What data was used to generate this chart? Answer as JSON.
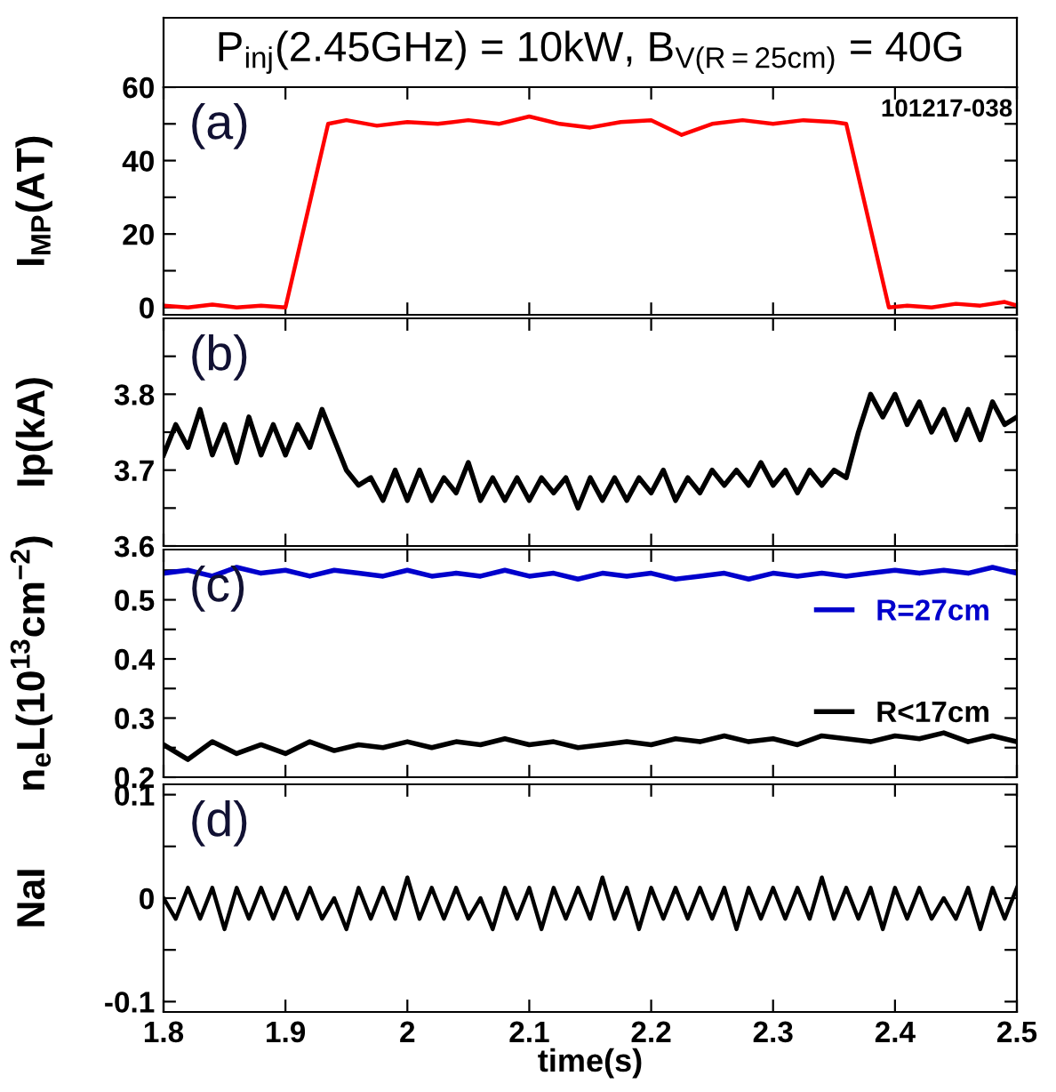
{
  "chart_data": [
    {
      "type": "line",
      "title": "P$_{inj}$(2.45GHz) = 10kW, B$_{V(R=25cm)}$ = 40G",
      "ylabel": "I$_{MP}$(AT)",
      "annotations": [
        "(a)",
        "101217-038"
      ],
      "xlim": [
        1.8,
        2.5
      ],
      "xticks": [
        {
          "value": 1.8,
          "label": null
        },
        {
          "value": 1.9,
          "label": null
        },
        {
          "value": 2.0,
          "label": null
        },
        {
          "value": 2.1,
          "label": null
        },
        {
          "value": 2.2,
          "label": null
        },
        {
          "value": 2.3,
          "label": null
        },
        {
          "value": 2.4,
          "label": null
        },
        {
          "value": 2.5,
          "label": null
        }
      ],
      "ylim": [
        -2,
        60
      ],
      "yticks": [
        0,
        {
          "value": 10,
          "label": null
        },
        20,
        {
          "value": 30,
          "label": null
        },
        40,
        {
          "value": 50,
          "label": null
        },
        60
      ],
      "tick_labels": "y",
      "grid": false,
      "legend": false,
      "marker": "none",
      "line_style": "solid",
      "series": [
        {
          "color": "#ff0000",
          "x": [
            1.8,
            1.82,
            1.84,
            1.86,
            1.88,
            1.9,
            1.935,
            1.95,
            1.975,
            2.0,
            2.025,
            2.05,
            2.075,
            2.1,
            2.125,
            2.15,
            2.175,
            2.2,
            2.225,
            2.25,
            2.275,
            2.3,
            2.325,
            2.35,
            2.36,
            2.395,
            2.41,
            2.43,
            2.45,
            2.47,
            2.49,
            2.5
          ],
          "values": [
            0.5,
            0,
            0.8,
            0,
            0.5,
            0,
            50,
            51,
            49.5,
            50.5,
            50,
            51,
            50,
            52,
            50,
            49,
            50.5,
            51,
            47,
            50,
            51,
            50,
            51,
            50.5,
            50,
            0,
            0.5,
            0,
            1,
            0.5,
            1.5,
            0.5
          ]
        }
      ]
    },
    {
      "type": "line",
      "ylabel": "Ip(kA)",
      "annotations": [
        "(b)"
      ],
      "xlim": [
        1.8,
        2.5
      ],
      "xticks": [
        {
          "value": 1.8,
          "label": null
        },
        {
          "value": 1.9,
          "label": null
        },
        {
          "value": 2.0,
          "label": null
        },
        {
          "value": 2.1,
          "label": null
        },
        {
          "value": 2.2,
          "label": null
        },
        {
          "value": 2.3,
          "label": null
        },
        {
          "value": 2.4,
          "label": null
        },
        {
          "value": 2.5,
          "label": null
        }
      ],
      "ylim": [
        3.6,
        3.9
      ],
      "yticks": [
        3.6,
        {
          "value": 3.65,
          "label": null
        },
        3.7,
        {
          "value": 3.75,
          "label": null
        },
        3.8,
        {
          "value": 3.85,
          "label": null
        }
      ],
      "tick_labels": "y",
      "grid": false,
      "legend": false,
      "marker": "none",
      "line_style": "solid",
      "x": [
        1.8,
        1.81,
        1.82,
        1.83,
        1.84,
        1.85,
        1.86,
        1.87,
        1.88,
        1.89,
        1.9,
        1.91,
        1.92,
        1.93,
        1.94,
        1.95,
        1.96,
        1.97,
        1.98,
        1.99,
        2.0,
        2.01,
        2.02,
        2.03,
        2.04,
        2.05,
        2.06,
        2.07,
        2.08,
        2.09,
        2.1,
        2.11,
        2.12,
        2.13,
        2.14,
        2.15,
        2.16,
        2.17,
        2.18,
        2.19,
        2.2,
        2.21,
        2.22,
        2.23,
        2.24,
        2.25,
        2.26,
        2.27,
        2.28,
        2.29,
        2.3,
        2.31,
        2.32,
        2.33,
        2.34,
        2.35,
        2.36,
        2.37,
        2.38,
        2.39,
        2.4,
        2.41,
        2.42,
        2.43,
        2.44,
        2.45,
        2.46,
        2.47,
        2.48,
        2.49,
        2.5
      ],
      "series": [
        {
          "color": "#000000",
          "values": [
            3.72,
            3.76,
            3.73,
            3.78,
            3.72,
            3.76,
            3.71,
            3.77,
            3.72,
            3.76,
            3.72,
            3.76,
            3.73,
            3.78,
            3.74,
            3.7,
            3.68,
            3.69,
            3.66,
            3.7,
            3.66,
            3.7,
            3.66,
            3.69,
            3.67,
            3.71,
            3.66,
            3.69,
            3.66,
            3.69,
            3.66,
            3.69,
            3.67,
            3.69,
            3.65,
            3.69,
            3.66,
            3.69,
            3.66,
            3.69,
            3.67,
            3.7,
            3.66,
            3.69,
            3.67,
            3.7,
            3.68,
            3.7,
            3.68,
            3.71,
            3.68,
            3.7,
            3.67,
            3.7,
            3.68,
            3.7,
            3.69,
            3.75,
            3.8,
            3.77,
            3.8,
            3.76,
            3.79,
            3.75,
            3.78,
            3.74,
            3.78,
            3.74,
            3.79,
            3.76,
            3.77
          ]
        }
      ]
    },
    {
      "type": "line",
      "ylabel": "n$_{e}$L(10$^{13}$cm$^{−2}$)",
      "annotations": [
        "(c)"
      ],
      "xlim": [
        1.8,
        2.5
      ],
      "xticks": [
        {
          "value": 1.8,
          "label": null
        },
        {
          "value": 1.9,
          "label": null
        },
        {
          "value": 2.0,
          "label": null
        },
        {
          "value": 2.1,
          "label": null
        },
        {
          "value": 2.2,
          "label": null
        },
        {
          "value": 2.3,
          "label": null
        },
        {
          "value": 2.4,
          "label": null
        },
        {
          "value": 2.5,
          "label": null
        }
      ],
      "ylim": [
        0.2,
        0.585
      ],
      "yticks": [
        0.2,
        {
          "value": 0.25,
          "label": null
        },
        0.3,
        {
          "value": 0.35,
          "label": null
        },
        0.4,
        {
          "value": 0.45,
          "label": null
        },
        0.5,
        {
          "value": 0.55,
          "label": null
        }
      ],
      "tick_labels": "y",
      "grid": false,
      "legend": "right",
      "marker": "none",
      "line_style": "solid",
      "x": [
        1.8,
        1.82,
        1.84,
        1.86,
        1.88,
        1.9,
        1.92,
        1.94,
        1.96,
        1.98,
        2.0,
        2.02,
        2.04,
        2.06,
        2.08,
        2.1,
        2.12,
        2.14,
        2.16,
        2.18,
        2.2,
        2.22,
        2.24,
        2.26,
        2.28,
        2.3,
        2.32,
        2.34,
        2.36,
        2.38,
        2.4,
        2.42,
        2.44,
        2.46,
        2.48,
        2.5
      ],
      "series": [
        {
          "name": "R=27cm",
          "color": "#0000cc",
          "values": [
            0.545,
            0.55,
            0.54,
            0.555,
            0.545,
            0.55,
            0.54,
            0.55,
            0.545,
            0.54,
            0.55,
            0.54,
            0.545,
            0.54,
            0.55,
            0.54,
            0.545,
            0.535,
            0.545,
            0.54,
            0.545,
            0.535,
            0.54,
            0.545,
            0.535,
            0.545,
            0.54,
            0.545,
            0.54,
            0.545,
            0.55,
            0.545,
            0.55,
            0.545,
            0.555,
            0.545
          ]
        },
        {
          "name": "R<17cm",
          "color": "#000000",
          "values": [
            0.255,
            0.23,
            0.26,
            0.24,
            0.255,
            0.24,
            0.26,
            0.245,
            0.255,
            0.25,
            0.26,
            0.25,
            0.26,
            0.255,
            0.265,
            0.255,
            0.26,
            0.25,
            0.255,
            0.26,
            0.255,
            0.265,
            0.26,
            0.27,
            0.26,
            0.265,
            0.255,
            0.27,
            0.265,
            0.26,
            0.27,
            0.265,
            0.275,
            0.26,
            0.27,
            0.26
          ]
        }
      ]
    },
    {
      "type": "line",
      "ylabel": "NaI",
      "xlabel": "time(s)",
      "annotations": [
        "(d)"
      ],
      "xlim": [
        1.8,
        2.5
      ],
      "xticks": [
        {
          "value": 1.8,
          "label": "1.8"
        },
        {
          "value": 1.9,
          "label": "1.9"
        },
        {
          "value": 2.0,
          "label": "2"
        },
        {
          "value": 2.1,
          "label": "2.1"
        },
        {
          "value": 2.2,
          "label": "2.2"
        },
        {
          "value": 2.3,
          "label": "2.3"
        },
        {
          "value": 2.4,
          "label": "2.4"
        },
        {
          "value": 2.5,
          "label": "2.5"
        }
      ],
      "ylim": [
        -0.11,
        0.11
      ],
      "yticks": [
        {
          "value": -0.1,
          "label": "-0.1"
        },
        {
          "value": -0.05,
          "label": null
        },
        0,
        {
          "value": 0.05,
          "label": null
        },
        0.1
      ],
      "grid": false,
      "legend": false,
      "marker": "none",
      "line_style": "solid",
      "x": [
        1.8,
        1.81,
        1.82,
        1.83,
        1.84,
        1.85,
        1.86,
        1.87,
        1.88,
        1.89,
        1.9,
        1.91,
        1.92,
        1.93,
        1.94,
        1.95,
        1.96,
        1.97,
        1.98,
        1.99,
        2.0,
        2.01,
        2.02,
        2.03,
        2.04,
        2.05,
        2.06,
        2.07,
        2.08,
        2.09,
        2.1,
        2.11,
        2.12,
        2.13,
        2.14,
        2.15,
        2.16,
        2.17,
        2.18,
        2.19,
        2.2,
        2.21,
        2.22,
        2.23,
        2.24,
        2.25,
        2.26,
        2.27,
        2.28,
        2.29,
        2.3,
        2.31,
        2.32,
        2.33,
        2.34,
        2.35,
        2.36,
        2.37,
        2.38,
        2.39,
        2.4,
        2.41,
        2.42,
        2.43,
        2.44,
        2.45,
        2.46,
        2.47,
        2.48,
        2.49,
        2.5
      ],
      "series": [
        {
          "color": "#000000",
          "values": [
            0,
            -0.02,
            0.01,
            -0.02,
            0.01,
            -0.03,
            0.01,
            -0.02,
            0.01,
            -0.02,
            0.01,
            -0.02,
            0.01,
            -0.02,
            0.0,
            -0.03,
            0.01,
            -0.02,
            0.01,
            -0.02,
            0.02,
            -0.02,
            0.01,
            -0.02,
            0.01,
            -0.02,
            0.0,
            -0.03,
            0.01,
            -0.02,
            0.01,
            -0.03,
            0.01,
            -0.02,
            0.01,
            -0.02,
            0.02,
            -0.02,
            0.01,
            -0.03,
            0.01,
            -0.02,
            0.01,
            -0.02,
            0.01,
            -0.02,
            0.01,
            -0.03,
            0.01,
            -0.02,
            0.01,
            -0.02,
            0.01,
            -0.02,
            0.02,
            -0.02,
            0.01,
            -0.02,
            0.01,
            -0.03,
            0.01,
            -0.02,
            0.01,
            -0.02,
            0.0,
            -0.02,
            0.01,
            -0.03,
            0.01,
            -0.02,
            0.01
          ]
        }
      ]
    }
  ]
}
